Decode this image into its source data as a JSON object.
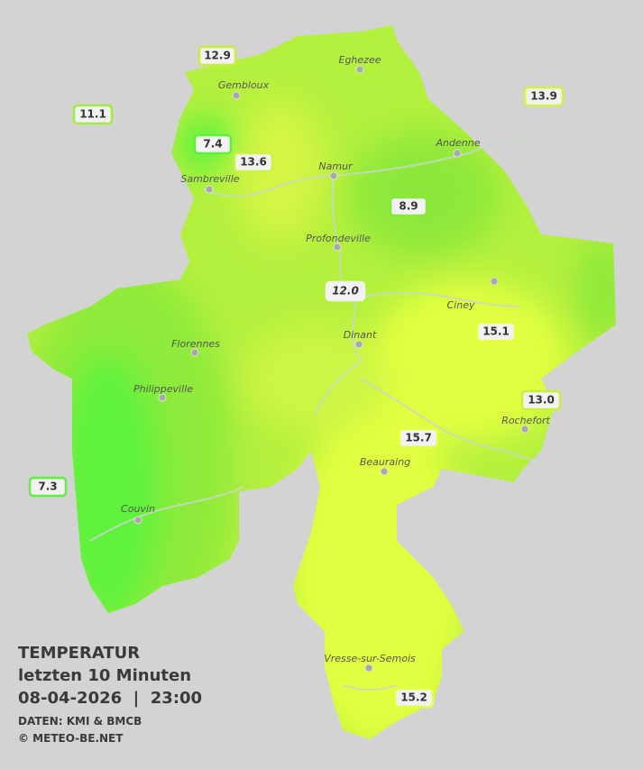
{
  "map": {
    "cities": [
      "Eghezee",
      "Gembloux",
      "Andenne",
      "Namur",
      "Sambreville",
      "Profondeville",
      "Ciney",
      "Dinant",
      "Florennes",
      "Philippeville",
      "Rochefort",
      "Beauraing",
      "Couvin",
      "Vresse-sur-Semois"
    ],
    "stations": [
      "12.9",
      "11.1",
      "7.4",
      "13.6",
      "13.9",
      "8.9",
      "12.0",
      "15.1",
      "13.0",
      "15.7",
      "7.3",
      "15.2"
    ]
  },
  "legend": {
    "title": "TEMPERATUR",
    "subtitle": "letzten 10 Minuten",
    "datetime": "08-04-2026  |  23:00",
    "source": "DATEN: KMI & BMCB",
    "site": "© METEO-BE.NET"
  }
}
